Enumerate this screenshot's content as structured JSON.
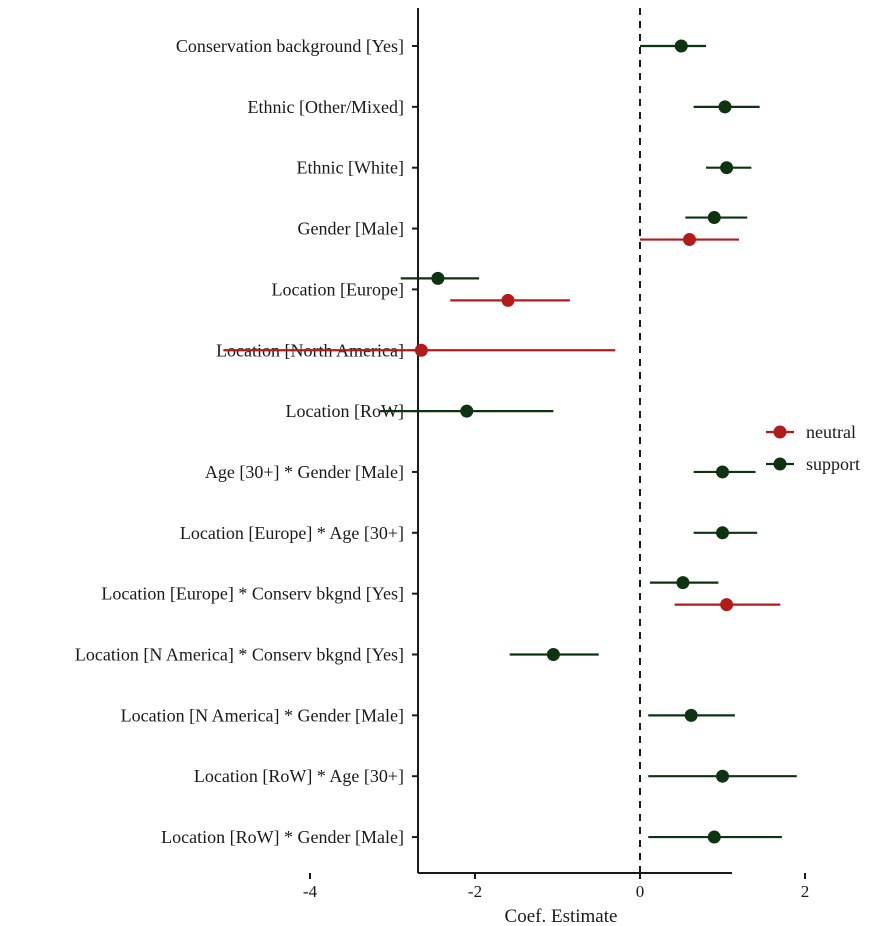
{
  "chart_data": {
    "type": "forest",
    "title": "",
    "xlabel": "Coef. Estimate",
    "ylabel": "",
    "xlim": [
      -5.4,
      2.2
    ],
    "xticks": [
      -4,
      -2,
      0,
      2
    ],
    "reference_line": {
      "x": 0,
      "style": "dashed"
    },
    "grid": false,
    "legend": {
      "placement": "right",
      "entries": [
        {
          "name": "neutral",
          "color": "#b31b1b"
        },
        {
          "name": "support",
          "color": "#0d3311"
        }
      ]
    },
    "categories": [
      "Conservation background [Yes]",
      "Ethnic [Other/Mixed]",
      "Ethnic [White]",
      "Gender [Male]",
      "Location [Europe]",
      "Location [North America]",
      "Location [RoW]",
      "Age [30+] * Gender [Male]",
      "Location [Europe] * Age [30+]",
      "Location [Europe] * Conserv bkgnd [Yes]",
      "Location [N America] * Conserv bkgnd [Yes]",
      "Location [N America] * Gender [Male]",
      "Location [RoW] * Age [30+]",
      "Location [RoW] * Gender [Male]"
    ],
    "series": [
      {
        "name": "support",
        "color": "#0d3311",
        "points": [
          {
            "category": "Conservation background [Yes]",
            "estimate": 0.5,
            "lower": 0.0,
            "upper": 0.8
          },
          {
            "category": "Ethnic [Other/Mixed]",
            "estimate": 1.03,
            "lower": 0.65,
            "upper": 1.45
          },
          {
            "category": "Ethnic [White]",
            "estimate": 1.05,
            "lower": 0.8,
            "upper": 1.35
          },
          {
            "category": "Gender [Male]",
            "estimate": 0.9,
            "lower": 0.55,
            "upper": 1.3
          },
          {
            "category": "Location [Europe]",
            "estimate": -2.45,
            "lower": -2.9,
            "upper": -1.95
          },
          {
            "category": "Location [RoW]",
            "estimate": -2.1,
            "lower": -3.15,
            "upper": -1.05
          },
          {
            "category": "Age [30+] * Gender [Male]",
            "estimate": 1.0,
            "lower": 0.65,
            "upper": 1.4
          },
          {
            "category": "Location [Europe] * Age [30+]",
            "estimate": 1.0,
            "lower": 0.65,
            "upper": 1.42
          },
          {
            "category": "Location [Europe] * Conserv bkgnd [Yes]",
            "estimate": 0.52,
            "lower": 0.12,
            "upper": 0.95
          },
          {
            "category": "Location [N America] * Conserv bkgnd [Yes]",
            "estimate": -1.05,
            "lower": -1.58,
            "upper": -0.5
          },
          {
            "category": "Location [N America] * Gender [Male]",
            "estimate": 0.62,
            "lower": 0.1,
            "upper": 1.15
          },
          {
            "category": "Location [RoW] * Age [30+]",
            "estimate": 1.0,
            "lower": 0.1,
            "upper": 1.9
          },
          {
            "category": "Location [RoW] * Gender [Male]",
            "estimate": 0.9,
            "lower": 0.1,
            "upper": 1.72
          }
        ]
      },
      {
        "name": "neutral",
        "color": "#b31b1b",
        "points": [
          {
            "category": "Gender [Male]",
            "estimate": 0.6,
            "lower": 0.0,
            "upper": 1.2
          },
          {
            "category": "Location [Europe]",
            "estimate": -1.6,
            "lower": -2.3,
            "upper": -0.85
          },
          {
            "category": "Location [North America]",
            "estimate": -2.65,
            "lower": -5.05,
            "upper": -0.3
          },
          {
            "category": "Location [Europe] * Conserv bkgnd [Yes]",
            "estimate": 1.05,
            "lower": 0.42,
            "upper": 1.7
          }
        ]
      }
    ]
  }
}
